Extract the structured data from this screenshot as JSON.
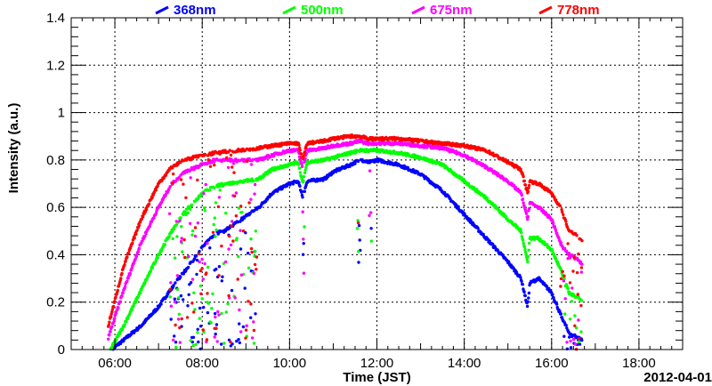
{
  "chart_data": {
    "type": "line",
    "xlabel": "Time (JST)",
    "ylabel": "Intensity (a.u.)",
    "date_label": "2012-04-01",
    "xlim": [
      5.0,
      19.0
    ],
    "ylim": [
      0,
      1.4
    ],
    "x_ticks": [
      6,
      8,
      10,
      12,
      14,
      16,
      18
    ],
    "x_tick_labels": [
      "06:00",
      "08:00",
      "10:00",
      "12:00",
      "14:00",
      "16:00",
      "18:00"
    ],
    "y_ticks": [
      0,
      0.2,
      0.4,
      0.6,
      0.8,
      1,
      1.2,
      1.4
    ],
    "y_tick_labels": [
      "0",
      "0.2",
      "0.4",
      "0.6",
      "0.8",
      "1",
      "1.2",
      "1.4"
    ],
    "grid": true,
    "legend_position": "top",
    "series": [
      {
        "name": "368nm",
        "color": "#0000ff",
        "x": [
          5.93,
          6.2,
          6.6,
          7.0,
          7.3,
          7.6,
          8.0,
          8.3,
          8.5,
          9.3,
          9.6,
          10.0,
          10.2,
          10.3,
          10.4,
          10.8,
          11.0,
          11.4,
          11.6,
          11.8,
          12.0,
          12.5,
          13.0,
          13.5,
          14.0,
          14.5,
          15.0,
          15.3,
          15.45,
          15.5,
          15.7,
          16.0,
          16.2,
          16.4,
          16.6,
          16.7
        ],
        "y": [
          0.0,
          0.04,
          0.1,
          0.18,
          0.26,
          0.33,
          0.43,
          0.49,
          0.5,
          0.6,
          0.66,
          0.7,
          0.71,
          0.64,
          0.71,
          0.72,
          0.75,
          0.78,
          0.8,
          0.79,
          0.8,
          0.78,
          0.74,
          0.67,
          0.57,
          0.47,
          0.37,
          0.3,
          0.18,
          0.28,
          0.3,
          0.24,
          0.15,
          0.07,
          0.05,
          0.04
        ]
      },
      {
        "name": "500nm",
        "color": "#00ff00",
        "x": [
          5.9,
          6.2,
          6.6,
          7.0,
          7.3,
          7.6,
          8.0,
          8.3,
          9.3,
          9.6,
          10.0,
          10.2,
          10.3,
          10.4,
          10.8,
          11.0,
          11.4,
          11.6,
          11.8,
          12.0,
          12.5,
          13.0,
          13.5,
          14.0,
          14.5,
          15.0,
          15.3,
          15.45,
          15.5,
          15.7,
          16.0,
          16.2,
          16.4,
          16.6,
          16.7
        ],
        "y": [
          0.0,
          0.1,
          0.25,
          0.4,
          0.5,
          0.58,
          0.66,
          0.69,
          0.72,
          0.76,
          0.78,
          0.79,
          0.7,
          0.79,
          0.8,
          0.81,
          0.83,
          0.84,
          0.84,
          0.84,
          0.83,
          0.81,
          0.78,
          0.71,
          0.64,
          0.55,
          0.5,
          0.37,
          0.47,
          0.47,
          0.42,
          0.34,
          0.24,
          0.22,
          0.2
        ]
      },
      {
        "name": "675nm",
        "color": "#ff00ff",
        "x": [
          5.85,
          6.2,
          6.6,
          7.0,
          7.3,
          7.6,
          8.0,
          8.3,
          9.3,
          9.6,
          10.0,
          10.2,
          10.3,
          10.4,
          10.8,
          11.0,
          11.4,
          11.6,
          11.8,
          12.0,
          12.5,
          13.0,
          13.5,
          14.0,
          14.5,
          15.0,
          15.3,
          15.45,
          15.5,
          15.7,
          16.0,
          16.2,
          16.4,
          16.6,
          16.7
        ],
        "y": [
          0.05,
          0.25,
          0.45,
          0.6,
          0.7,
          0.75,
          0.78,
          0.8,
          0.8,
          0.82,
          0.84,
          0.84,
          0.76,
          0.84,
          0.85,
          0.86,
          0.87,
          0.88,
          0.87,
          0.87,
          0.87,
          0.86,
          0.85,
          0.82,
          0.77,
          0.71,
          0.66,
          0.55,
          0.62,
          0.6,
          0.55,
          0.45,
          0.4,
          0.38,
          0.36
        ]
      },
      {
        "name": "778nm",
        "color": "#ff0000",
        "x": [
          5.85,
          6.2,
          6.6,
          7.0,
          7.3,
          7.6,
          8.0,
          8.3,
          9.3,
          9.6,
          10.0,
          10.2,
          10.3,
          10.4,
          10.8,
          11.0,
          11.4,
          11.6,
          11.8,
          12.0,
          12.5,
          13.0,
          13.5,
          14.0,
          14.5,
          15.0,
          15.3,
          15.45,
          15.5,
          15.7,
          16.0,
          16.2,
          16.4,
          16.6,
          16.7
        ],
        "y": [
          0.1,
          0.35,
          0.55,
          0.7,
          0.77,
          0.8,
          0.82,
          0.83,
          0.85,
          0.86,
          0.87,
          0.87,
          0.8,
          0.87,
          0.88,
          0.89,
          0.9,
          0.9,
          0.89,
          0.89,
          0.89,
          0.88,
          0.87,
          0.86,
          0.84,
          0.79,
          0.76,
          0.66,
          0.71,
          0.7,
          0.66,
          0.6,
          0.5,
          0.48,
          0.46
        ]
      }
    ]
  }
}
